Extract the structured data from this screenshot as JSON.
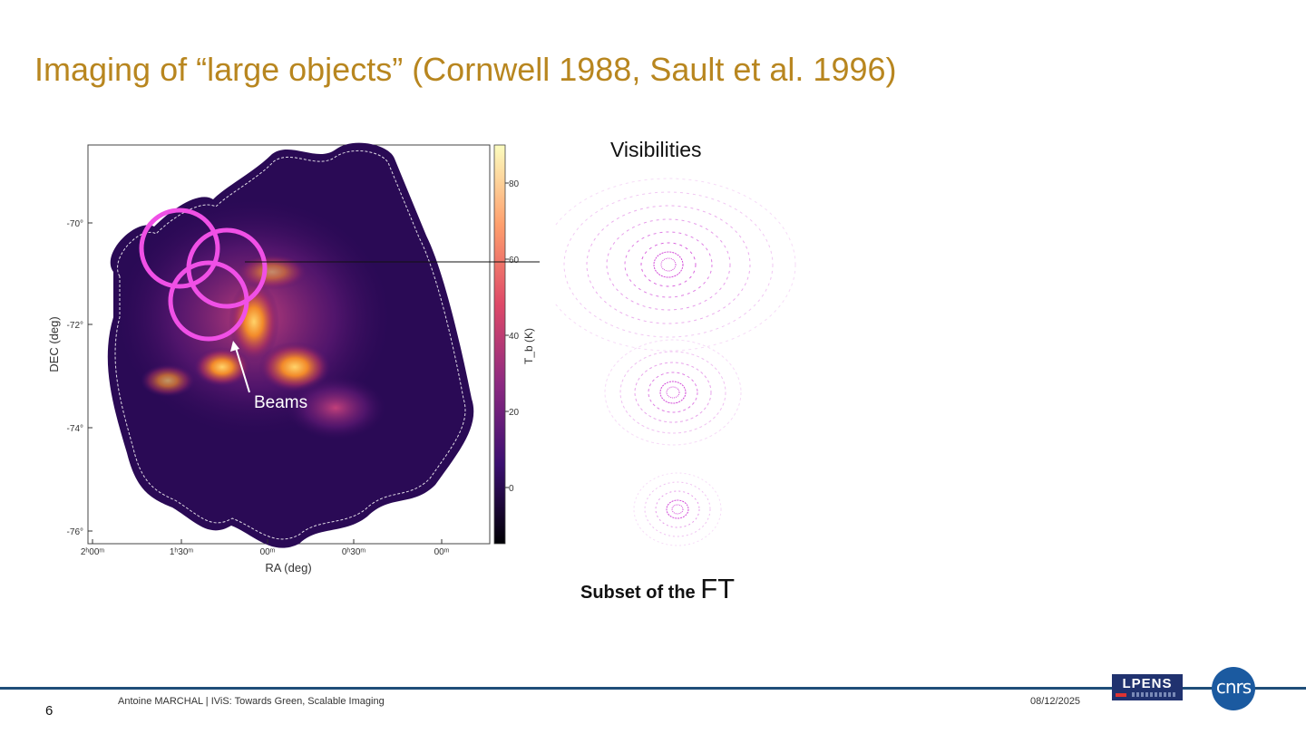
{
  "slide": {
    "title": "Imaging of “large objects” (Cornwell 1988, Sault et al. 1996)",
    "visibilities_label": "Visibilities",
    "subset_label_prefix": "Subset of the ",
    "subset_label_emph": "FT",
    "beams_label": "Beams"
  },
  "map": {
    "xlabel": "RA (deg)",
    "ylabel": "DEC (deg)",
    "x_ticks": [
      "2ʰ00ᵐ",
      "1ʰ30ᵐ",
      "00ᵐ",
      "0ʰ30ᵐ",
      "00ᵐ"
    ],
    "y_ticks": [
      "-70°",
      "-72°",
      "-74°",
      "-76°"
    ],
    "colorbar_label": "T_b (K)",
    "colorbar_ticks": [
      "80",
      "60",
      "40",
      "20",
      "0"
    ],
    "colors": {
      "beam": "#f050e6",
      "background": "#2a0a55"
    }
  },
  "footer": {
    "page_number": "6",
    "author_line": "Antoine MARCHAL   | IViS: Towards Green, Scalable Imaging",
    "date": "08/12/2025",
    "logo_lpens": "LPENS",
    "logo_cnrs": "cnrs"
  }
}
